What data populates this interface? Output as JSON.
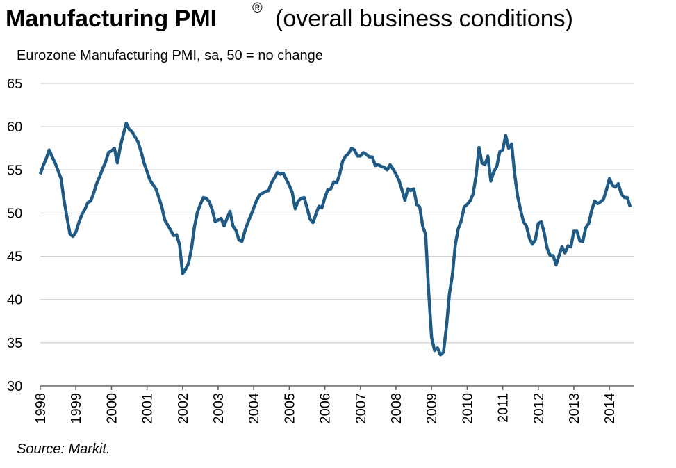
{
  "chart_data": {
    "type": "line",
    "title": "Manufacturing PMI",
    "title_mark": "®",
    "title_suffix": "(overall business conditions)",
    "subtitle": "Eurozone Manufacturing PMI, sa, 50 = no change",
    "source": "Source: Markit.",
    "categories": [
      "1998",
      null,
      null,
      null,
      null,
      null,
      null,
      null,
      null,
      null,
      null,
      null,
      "1999",
      null,
      null,
      null,
      null,
      null,
      null,
      null,
      null,
      null,
      null,
      null,
      "2000",
      null,
      null,
      null,
      null,
      null,
      null,
      null,
      null,
      null,
      null,
      null,
      "2001",
      null,
      null,
      null,
      null,
      null,
      null,
      null,
      null,
      null,
      null,
      null,
      "2002",
      null,
      null,
      null,
      null,
      null,
      null,
      null,
      null,
      null,
      null,
      null,
      "2003",
      null,
      null,
      null,
      null,
      null,
      null,
      null,
      null,
      null,
      null,
      null,
      "2004",
      null,
      null,
      null,
      null,
      null,
      null,
      null,
      null,
      null,
      null,
      null,
      "2005",
      null,
      null,
      null,
      null,
      null,
      null,
      null,
      null,
      null,
      null,
      null,
      "2006",
      null,
      null,
      null,
      null,
      null,
      null,
      null,
      null,
      null,
      null,
      null,
      "2007",
      null,
      null,
      null,
      null,
      null,
      null,
      null,
      null,
      null,
      null,
      null,
      "2008",
      null,
      null,
      null,
      null,
      null,
      null,
      null,
      null,
      null,
      null,
      null,
      "2009",
      null,
      null,
      null,
      null,
      null,
      null,
      null,
      null,
      null,
      null,
      null,
      "2010",
      null,
      null,
      null,
      null,
      null,
      null,
      null,
      null,
      null,
      null,
      null,
      "2011",
      null,
      null,
      null,
      null,
      null,
      null,
      null,
      null,
      null,
      null,
      null,
      "2012",
      null,
      null,
      null,
      null,
      null,
      null,
      null,
      null,
      null,
      null,
      null,
      "2013",
      null,
      null,
      null,
      null,
      null,
      null,
      null,
      null,
      null,
      null,
      null,
      "2014",
      null,
      null,
      null,
      null,
      null,
      null,
      null
    ],
    "series": [
      {
        "color": "#1f5a85",
        "values": [
          54.5,
          55.5,
          56.3,
          57.3,
          56.5,
          55.8,
          54.9,
          54.0,
          51.5,
          49.5,
          47.6,
          47.3,
          47.8,
          48.9,
          49.8,
          50.4,
          51.2,
          51.4,
          52.3,
          53.4,
          54.2,
          55.1,
          55.9,
          57.0,
          57.2,
          57.5,
          55.8,
          57.7,
          59.1,
          60.4,
          59.7,
          59.4,
          58.8,
          58.2,
          57.1,
          55.8,
          54.8,
          53.8,
          53.3,
          52.8,
          51.8,
          50.7,
          49.2,
          48.6,
          48.0,
          47.4,
          47.5,
          46.3,
          43.0,
          43.5,
          44.2,
          45.9,
          48.4,
          50.1,
          51.0,
          51.8,
          51.7,
          51.3,
          50.4,
          49.0,
          49.2,
          49.4,
          48.5,
          49.4,
          50.2,
          48.5,
          48.0,
          46.9,
          46.7,
          47.9,
          48.9,
          49.7,
          50.6,
          51.5,
          52.1,
          52.3,
          52.5,
          52.6,
          53.5,
          54.1,
          54.7,
          54.5,
          54.6,
          53.9,
          53.2,
          52.4,
          50.5,
          51.4,
          51.7,
          51.8,
          50.6,
          49.3,
          48.9,
          49.9,
          50.8,
          50.6,
          51.8,
          52.7,
          52.8,
          53.6,
          53.5,
          54.5,
          56.0,
          56.6,
          56.9,
          57.5,
          57.3,
          56.6,
          56.6,
          57.0,
          56.8,
          56.5,
          56.5,
          55.5,
          55.6,
          55.4,
          55.3,
          55.0,
          55.6,
          55.1,
          54.5,
          53.8,
          52.7,
          51.5,
          52.8,
          52.6,
          52.8,
          51.0,
          50.7,
          48.5,
          47.5,
          41.0,
          35.6,
          34.1,
          34.4,
          33.6,
          33.9,
          36.8,
          40.6,
          42.8,
          46.3,
          48.2,
          49.1,
          50.7,
          51.0,
          51.4,
          52.2,
          54.3,
          57.6,
          55.8,
          55.6,
          56.6,
          53.7,
          54.8,
          55.4,
          57.1,
          57.3,
          59.0,
          57.5,
          58.0,
          54.6,
          52.0,
          50.4,
          49.0,
          48.5,
          47.1,
          46.4,
          46.9,
          48.8,
          49.0,
          47.7,
          45.9,
          45.1,
          45.1,
          44.0,
          45.1,
          46.1,
          45.4,
          46.2,
          46.1,
          47.9,
          47.9,
          46.8,
          46.7,
          48.3,
          48.8,
          50.3,
          51.4,
          51.1,
          51.3,
          51.6,
          52.7,
          54.0,
          53.2,
          53.0,
          53.4,
          52.2,
          51.8,
          51.8,
          50.7
        ]
      }
    ],
    "ylim": [
      30,
      65
    ],
    "yticks": [
      30,
      35,
      40,
      45,
      50,
      55,
      60,
      65
    ],
    "grid": true
  }
}
